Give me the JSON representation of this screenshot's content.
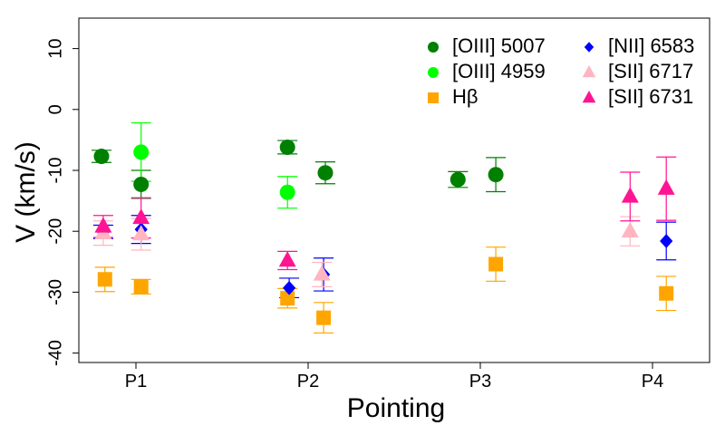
{
  "chart_data": {
    "type": "scatter",
    "title": "",
    "xlabel": "Pointing",
    "ylabel": "V (km/s)",
    "categories": [
      "P1",
      "P2",
      "P3",
      "P4"
    ],
    "ylim": [
      -42,
      15
    ],
    "yticks": [
      10,
      0,
      -10,
      -20,
      -30,
      -40
    ],
    "ytick_labels": [
      "10",
      "0",
      "-10",
      "-20",
      "-30",
      "-40"
    ],
    "legend_position": "top-right",
    "series": [
      {
        "name": "[OIII] 5007",
        "color": "#008000",
        "marker": "circle",
        "points": [
          {
            "category": "P1",
            "offset": -0.2,
            "y": -7.7,
            "err": 1.0
          },
          {
            "category": "P1",
            "offset": 0.03,
            "y": -12.3,
            "err": 2.3
          },
          {
            "category": "P2",
            "offset": -0.12,
            "y": -6.2,
            "err": 1.1
          },
          {
            "category": "P2",
            "offset": 0.1,
            "y": -10.4,
            "err": 1.8
          },
          {
            "category": "P3",
            "offset": -0.13,
            "y": -11.5,
            "err": 1.3
          },
          {
            "category": "P3",
            "offset": 0.09,
            "y": -10.7,
            "err": 2.8
          }
        ]
      },
      {
        "name": "[OIII] 4959",
        "color": "#00ff00",
        "marker": "circle",
        "points": [
          {
            "category": "P1",
            "offset": 0.03,
            "y": -7.0,
            "err": 4.8
          },
          {
            "category": "P2",
            "offset": -0.12,
            "y": -13.6,
            "err": 2.6
          }
        ]
      },
      {
        "name": "Hβ",
        "color": "#ffa500",
        "marker": "square",
        "points": [
          {
            "category": "P1",
            "offset": -0.18,
            "y": -27.9,
            "err": 2.0
          },
          {
            "category": "P1",
            "offset": 0.03,
            "y": -29.1,
            "err": 1.2
          },
          {
            "category": "P2",
            "offset": -0.12,
            "y": -31.0,
            "err": 1.6
          },
          {
            "category": "P2",
            "offset": 0.09,
            "y": -34.2,
            "err": 2.5
          },
          {
            "category": "P3",
            "offset": 0.09,
            "y": -25.4,
            "err": 2.8
          },
          {
            "category": "P4",
            "offset": 0.08,
            "y": -30.2,
            "err": 2.8
          }
        ]
      },
      {
        "name": "[NII] 6583",
        "color": "#0000ff",
        "marker": "diamond",
        "points": [
          {
            "category": "P1",
            "offset": -0.19,
            "y": -20.1,
            "err": 1.1
          },
          {
            "category": "P1",
            "offset": 0.03,
            "y": -19.7,
            "err": 2.3
          },
          {
            "category": "P2",
            "offset": -0.11,
            "y": -29.3,
            "err": 1.6
          },
          {
            "category": "P2",
            "offset": 0.09,
            "y": -27.1,
            "err": 2.7
          },
          {
            "category": "P4",
            "offset": 0.08,
            "y": -21.6,
            "err": 3.1
          }
        ]
      },
      {
        "name": "[SII] 6717",
        "color": "#ffb6c1",
        "marker": "triangle",
        "points": [
          {
            "category": "P1",
            "offset": -0.19,
            "y": -20.3,
            "err": 2.0
          },
          {
            "category": "P1",
            "offset": 0.03,
            "y": -20.5,
            "err": 2.6
          },
          {
            "category": "P2",
            "offset": 0.08,
            "y": -27.1,
            "err": 2.0
          },
          {
            "category": "P4",
            "offset": -0.13,
            "y": -20.0,
            "err": 2.4
          }
        ]
      },
      {
        "name": "[SII] 6731",
        "color": "#ff1493",
        "marker": "triangle",
        "points": [
          {
            "category": "P1",
            "offset": -0.19,
            "y": -19.2,
            "err": 1.8
          },
          {
            "category": "P1",
            "offset": 0.03,
            "y": -17.8,
            "err": 3.3
          },
          {
            "category": "P2",
            "offset": -0.12,
            "y": -24.8,
            "err": 1.5
          },
          {
            "category": "P4",
            "offset": -0.13,
            "y": -14.3,
            "err": 4.0
          },
          {
            "category": "P4",
            "offset": 0.08,
            "y": -13.0,
            "err": 5.2
          }
        ]
      }
    ]
  }
}
